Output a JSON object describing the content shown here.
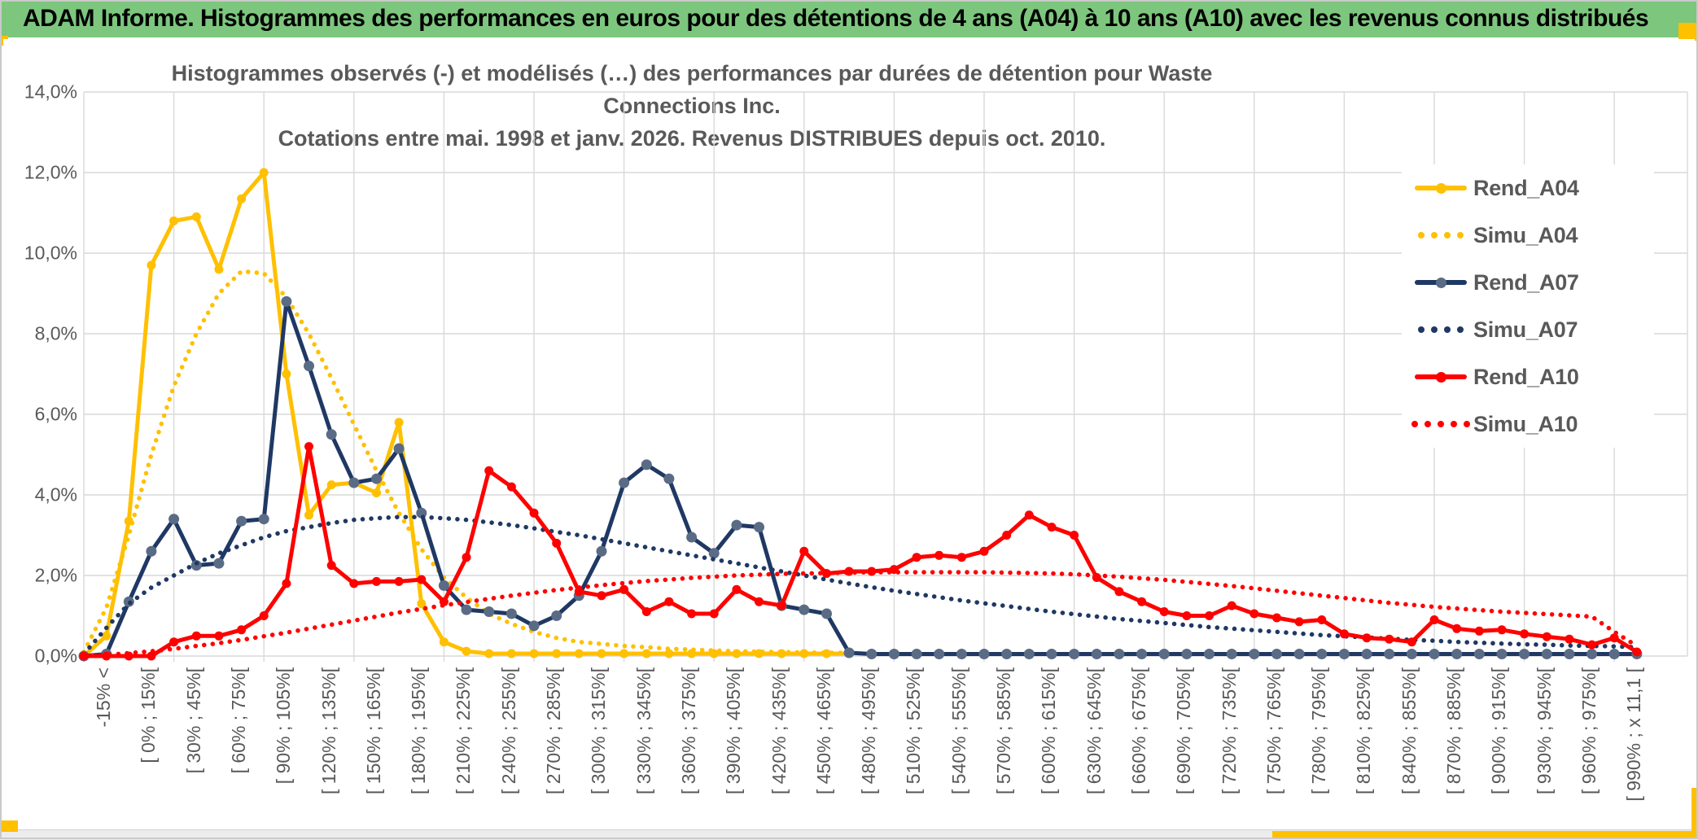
{
  "window": {
    "title": "ADAM Informe. Histogrammes des performances en euros pour des détentions de 4 ans (A04) à 10 ans (A10) avec les revenus connus distribués",
    "header_color": "#7dc67e",
    "accent_color": "#ffc000"
  },
  "chart_data": {
    "type": "line",
    "title": "Histogrammes observés (-) et modélisés (…) des performances par durées de détention pour Waste Connections Inc.",
    "subtitle": "Cotations entre mai. 1998 et janv. 2026. Revenus DISTRIBUES depuis oct. 2010.",
    "ylabel": "",
    "xlabel": "",
    "ylim": [
      0,
      14
    ],
    "grid": true,
    "legend_position": "right",
    "y_tick_labels": [
      "0,0%",
      "2,0%",
      "4,0%",
      "6,0%",
      "8,0%",
      "10,0%",
      "12,0%",
      "14,0%"
    ],
    "x_tick_labels": [
      "-15% <",
      "[ 0% ; 15%[",
      "[ 30% ; 45%[",
      "[ 60% ; 75%[",
      "[ 90% ; 105%[",
      "[ 120% ; 135%[",
      "[ 150% ; 165%[",
      "[ 180% ; 195%[",
      "[ 210% ; 225%[",
      "[ 240% ; 255%[",
      "[ 270% ; 285%[",
      "[ 300% ; 315%[",
      "[ 330% ; 345%[",
      "[ 360% ; 375%[",
      "[ 390% ; 405%[",
      "[ 420% ; 435%[",
      "[ 450% ; 465%[",
      "[ 480% ; 495%[",
      "[ 510% ; 525%[",
      "[ 540% ; 555%[",
      "[ 570% ; 585%[",
      "[ 600% ; 615%[",
      "[ 630% ; 645%[",
      "[ 660% ; 675%[",
      "[ 690% ; 705%[",
      "[ 720% ; 735%[",
      "[ 750% ; 765%[",
      "[ 780% ; 795%[",
      "[ 810% ; 825%[",
      "[ 840% ; 855%[",
      "[ 870% ; 885%[",
      "[ 900% ; 915%[",
      "[ 930% ; 945%[",
      "[ 960% ; 975%[",
      "[ 990% ; x 11,1 ["
    ],
    "x_tick_every_n_bins": 2,
    "bins": 70,
    "series": [
      {
        "name": "Rend_A04",
        "style": "solid",
        "color": "#FFC000",
        "marker_color": "#FFC000",
        "marker_r": 5.5,
        "values": [
          0,
          0.5,
          3.35,
          9.7,
          10.8,
          10.9,
          9.6,
          11.35,
          12.0,
          7.0,
          3.5,
          4.25,
          4.3,
          4.05,
          5.8,
          1.3,
          0.35,
          0.12,
          0.06,
          0.06,
          0.06,
          0.06,
          0.06,
          0.06,
          0.06,
          0.06,
          0.06,
          0.06,
          0.06,
          0.06,
          0.06,
          0.06,
          0.06,
          0.06,
          0.06,
          null,
          null,
          null,
          null,
          null,
          null,
          null,
          null,
          null,
          null,
          null,
          null,
          null,
          null,
          null,
          null,
          null,
          null,
          null,
          null,
          null,
          null,
          null,
          null,
          null,
          null,
          null,
          null,
          null,
          null,
          null,
          null,
          null,
          null,
          null
        ]
      },
      {
        "name": "Simu_A04",
        "style": "dotted",
        "color": "#FFC000",
        "marker_color": "#FFC000",
        "marker_r": 0,
        "values": [
          0.1,
          1.2,
          3.0,
          5.0,
          6.7,
          8.0,
          9.0,
          9.55,
          9.5,
          8.9,
          8.0,
          6.9,
          5.75,
          4.6,
          3.55,
          2.65,
          1.95,
          1.45,
          1.05,
          0.8,
          0.6,
          0.45,
          0.35,
          0.3,
          0.25,
          0.22,
          0.18,
          0.16,
          0.14,
          0.12,
          0.11,
          0.1,
          0.09,
          0.08,
          0.08,
          null,
          null,
          null,
          null,
          null,
          null,
          null,
          null,
          null,
          null,
          null,
          null,
          null,
          null,
          null,
          null,
          null,
          null,
          null,
          null,
          null,
          null,
          null,
          null,
          null,
          null,
          null,
          null,
          null,
          null,
          null,
          null,
          null,
          null,
          null
        ]
      },
      {
        "name": "Rend_A07",
        "style": "solid",
        "color": "#1F3864",
        "marker_color": "#5A6B85",
        "marker_r": 6.5,
        "values": [
          0,
          0.05,
          1.35,
          2.6,
          3.4,
          2.25,
          2.3,
          3.35,
          3.4,
          8.8,
          7.2,
          5.5,
          4.3,
          4.4,
          5.15,
          3.55,
          1.75,
          1.15,
          1.1,
          1.05,
          0.75,
          1.0,
          1.5,
          2.6,
          4.3,
          4.75,
          4.4,
          2.95,
          2.55,
          3.25,
          3.2,
          1.25,
          1.15,
          1.05,
          0.08,
          0.05,
          0.05,
          0.05,
          0.05,
          0.05,
          0.05,
          0.05,
          0.05,
          0.05,
          0.05,
          0.05,
          0.05,
          0.05,
          0.05,
          0.05,
          0.05,
          0.05,
          0.05,
          0.05,
          0.05,
          0.05,
          0.05,
          0.05,
          0.05,
          0.05,
          0.05,
          0.05,
          0.05,
          0.05,
          0.05,
          0.05,
          0.05,
          0.05,
          0.05,
          0.05
        ]
      },
      {
        "name": "Simu_A07",
        "style": "dotted",
        "color": "#1F3864",
        "marker_color": "#1F3864",
        "marker_r": 0,
        "values": [
          0.05,
          0.7,
          1.3,
          1.7,
          2.0,
          2.3,
          2.55,
          2.75,
          2.95,
          3.1,
          3.2,
          3.3,
          3.38,
          3.42,
          3.45,
          3.45,
          3.42,
          3.38,
          3.32,
          3.25,
          3.17,
          3.08,
          3.0,
          2.9,
          2.8,
          2.7,
          2.6,
          2.5,
          2.4,
          2.3,
          2.2,
          2.1,
          2.0,
          1.9,
          1.8,
          1.71,
          1.62,
          1.54,
          1.46,
          1.38,
          1.31,
          1.24,
          1.17,
          1.1,
          1.04,
          0.98,
          0.92,
          0.87,
          0.82,
          0.77,
          0.72,
          0.68,
          0.64,
          0.6,
          0.56,
          0.52,
          0.49,
          0.46,
          0.43,
          0.4,
          0.38,
          0.35,
          0.33,
          0.31,
          0.29,
          0.28,
          0.26,
          0.25,
          0.24,
          0.22
        ]
      },
      {
        "name": "Rend_A10",
        "style": "solid",
        "color": "#FF0000",
        "marker_color": "#FF0000",
        "marker_r": 5.5,
        "values": [
          0,
          0,
          0,
          0,
          0.35,
          0.5,
          0.5,
          0.65,
          1.0,
          1.8,
          5.2,
          2.25,
          1.8,
          1.85,
          1.85,
          1.9,
          1.35,
          2.45,
          4.6,
          4.2,
          3.55,
          2.8,
          1.6,
          1.5,
          1.65,
          1.1,
          1.35,
          1.05,
          1.05,
          1.65,
          1.35,
          1.25,
          2.6,
          2.05,
          2.1,
          2.1,
          2.15,
          2.45,
          2.5,
          2.45,
          2.6,
          3.0,
          3.5,
          3.2,
          3.0,
          1.95,
          1.6,
          1.35,
          1.1,
          1.0,
          1.0,
          1.25,
          1.05,
          0.95,
          0.85,
          0.9,
          0.55,
          0.45,
          0.42,
          0.35,
          0.9,
          0.68,
          0.62,
          0.65,
          0.55,
          0.48,
          0.42,
          0.28,
          0.45,
          0.1
        ]
      },
      {
        "name": "Simu_A10",
        "style": "dotted",
        "color": "#FF0000",
        "marker_color": "#FF0000",
        "marker_r": 0,
        "values": [
          0,
          0.03,
          0.07,
          0.12,
          0.18,
          0.25,
          0.32,
          0.4,
          0.49,
          0.58,
          0.68,
          0.78,
          0.88,
          0.98,
          1.08,
          1.17,
          1.26,
          1.34,
          1.42,
          1.5,
          1.57,
          1.64,
          1.7,
          1.76,
          1.81,
          1.86,
          1.9,
          1.94,
          1.97,
          2.0,
          2.02,
          2.04,
          2.05,
          2.06,
          2.07,
          2.08,
          2.08,
          2.08,
          2.08,
          2.08,
          2.08,
          2.07,
          2.06,
          2.05,
          2.03,
          2.0,
          1.97,
          1.93,
          1.89,
          1.84,
          1.79,
          1.74,
          1.68,
          1.62,
          1.56,
          1.5,
          1.44,
          1.38,
          1.32,
          1.27,
          1.22,
          1.18,
          1.14,
          1.1,
          1.07,
          1.04,
          1.01,
          0.98,
          0.6,
          0.25
        ]
      }
    ]
  }
}
